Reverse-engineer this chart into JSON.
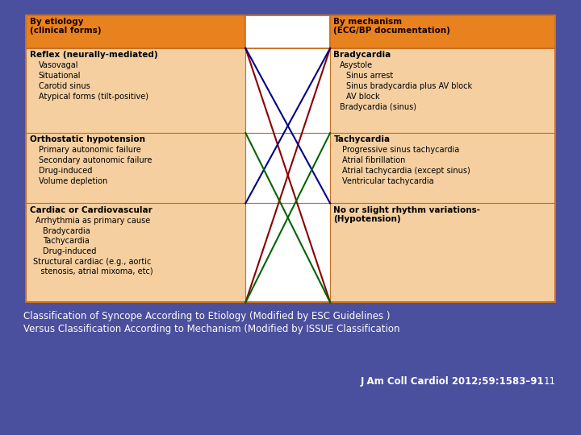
{
  "bg_color": "#4a4f9e",
  "table_bg": "#f5cfa0",
  "header_bg": "#e8821e",
  "table_border": "#c87020",
  "cell_border": "#c87020",
  "white_center": "#ffffff",
  "title_line1": "Classification of Syncope According to Etiology (Modified by ESC Guidelines )",
  "title_line2": "Versus Classification According to Mechanism (Modified by ISSUE Classification",
  "citation_text": "J Am Coll Cardiol 2012;59:1583–91",
  "citation_num": "11",
  "left_header": "By etiology\n(clinical forms)",
  "right_header": "By mechanism\n(ECG/BP documentation)",
  "left_col1_bold": "Reflex (neurally-mediated)",
  "left_col1_items": [
    "Vasovagal",
    "Situational",
    "Carotid sinus",
    "Atypical forms (tilt-positive)"
  ],
  "left_col2_bold": "Orthostatic hypotension",
  "left_col2_items": [
    "Primary autonomic failure",
    "Secondary autonomic failure",
    "Drug-induced",
    "Volume depletion"
  ],
  "left_col3_bold": "Cardiac or Cardiovascular",
  "left_col3_sub": "Arrhythmia as primary cause",
  "left_col3_subsub": [
    "Bradycardia",
    "Tachycardia",
    "Drug-induced"
  ],
  "left_col3_other": "Structural cardiac (e.g., aortic\n   stenosis, atrial mixoma, etc)",
  "right_col1_bold": "Bradycardia",
  "right_col1_sub": "Asystole",
  "right_col1_items": [
    "Sinus arrest",
    "Sinus bradycardia plus AV block",
    "AV block"
  ],
  "right_col1_last": "Bradycardia (sinus)",
  "right_col2_bold": "Tachycardia",
  "right_col2_items": [
    "Progressive sinus tachycardia",
    "Atrial fibrillation",
    "Atrial tachycardia (except sinus)",
    "Ventricular tachycardia"
  ],
  "right_col3_bold": "No or slight rhythm variations-\n(Hypotension)",
  "line1_color": "#8b0000",
  "line2_color": "#00008b",
  "line3_color": "#006400",
  "title_color": "#ffffff",
  "citation_color": "#ffffff"
}
